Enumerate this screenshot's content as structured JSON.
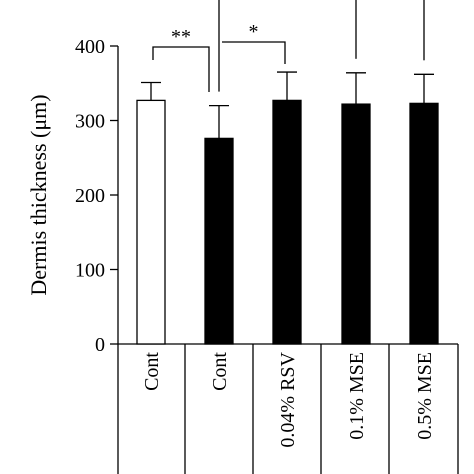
{
  "chart_data": {
    "type": "bar",
    "title": "",
    "ylabel": "Dermis thickness (μm)",
    "xlabel": "",
    "ylim": [
      0,
      400
    ],
    "yticks": [
      0,
      100,
      200,
      300,
      400
    ],
    "categories": [
      "Cont",
      "Cont",
      "0.04% RSV",
      "0.1% MSE",
      "0.5% MSE"
    ],
    "values": [
      327,
      276,
      327,
      322,
      323
    ],
    "errors": [
      24,
      44,
      38,
      42,
      39
    ],
    "fill_colors": [
      "#ffffff",
      "#000000",
      "#000000",
      "#000000",
      "#000000"
    ],
    "significance": [
      {
        "from": 0,
        "to": 1,
        "label": "**"
      },
      {
        "from": 1,
        "to": 2,
        "label": "*"
      }
    ],
    "grid": false,
    "legend": "none"
  }
}
